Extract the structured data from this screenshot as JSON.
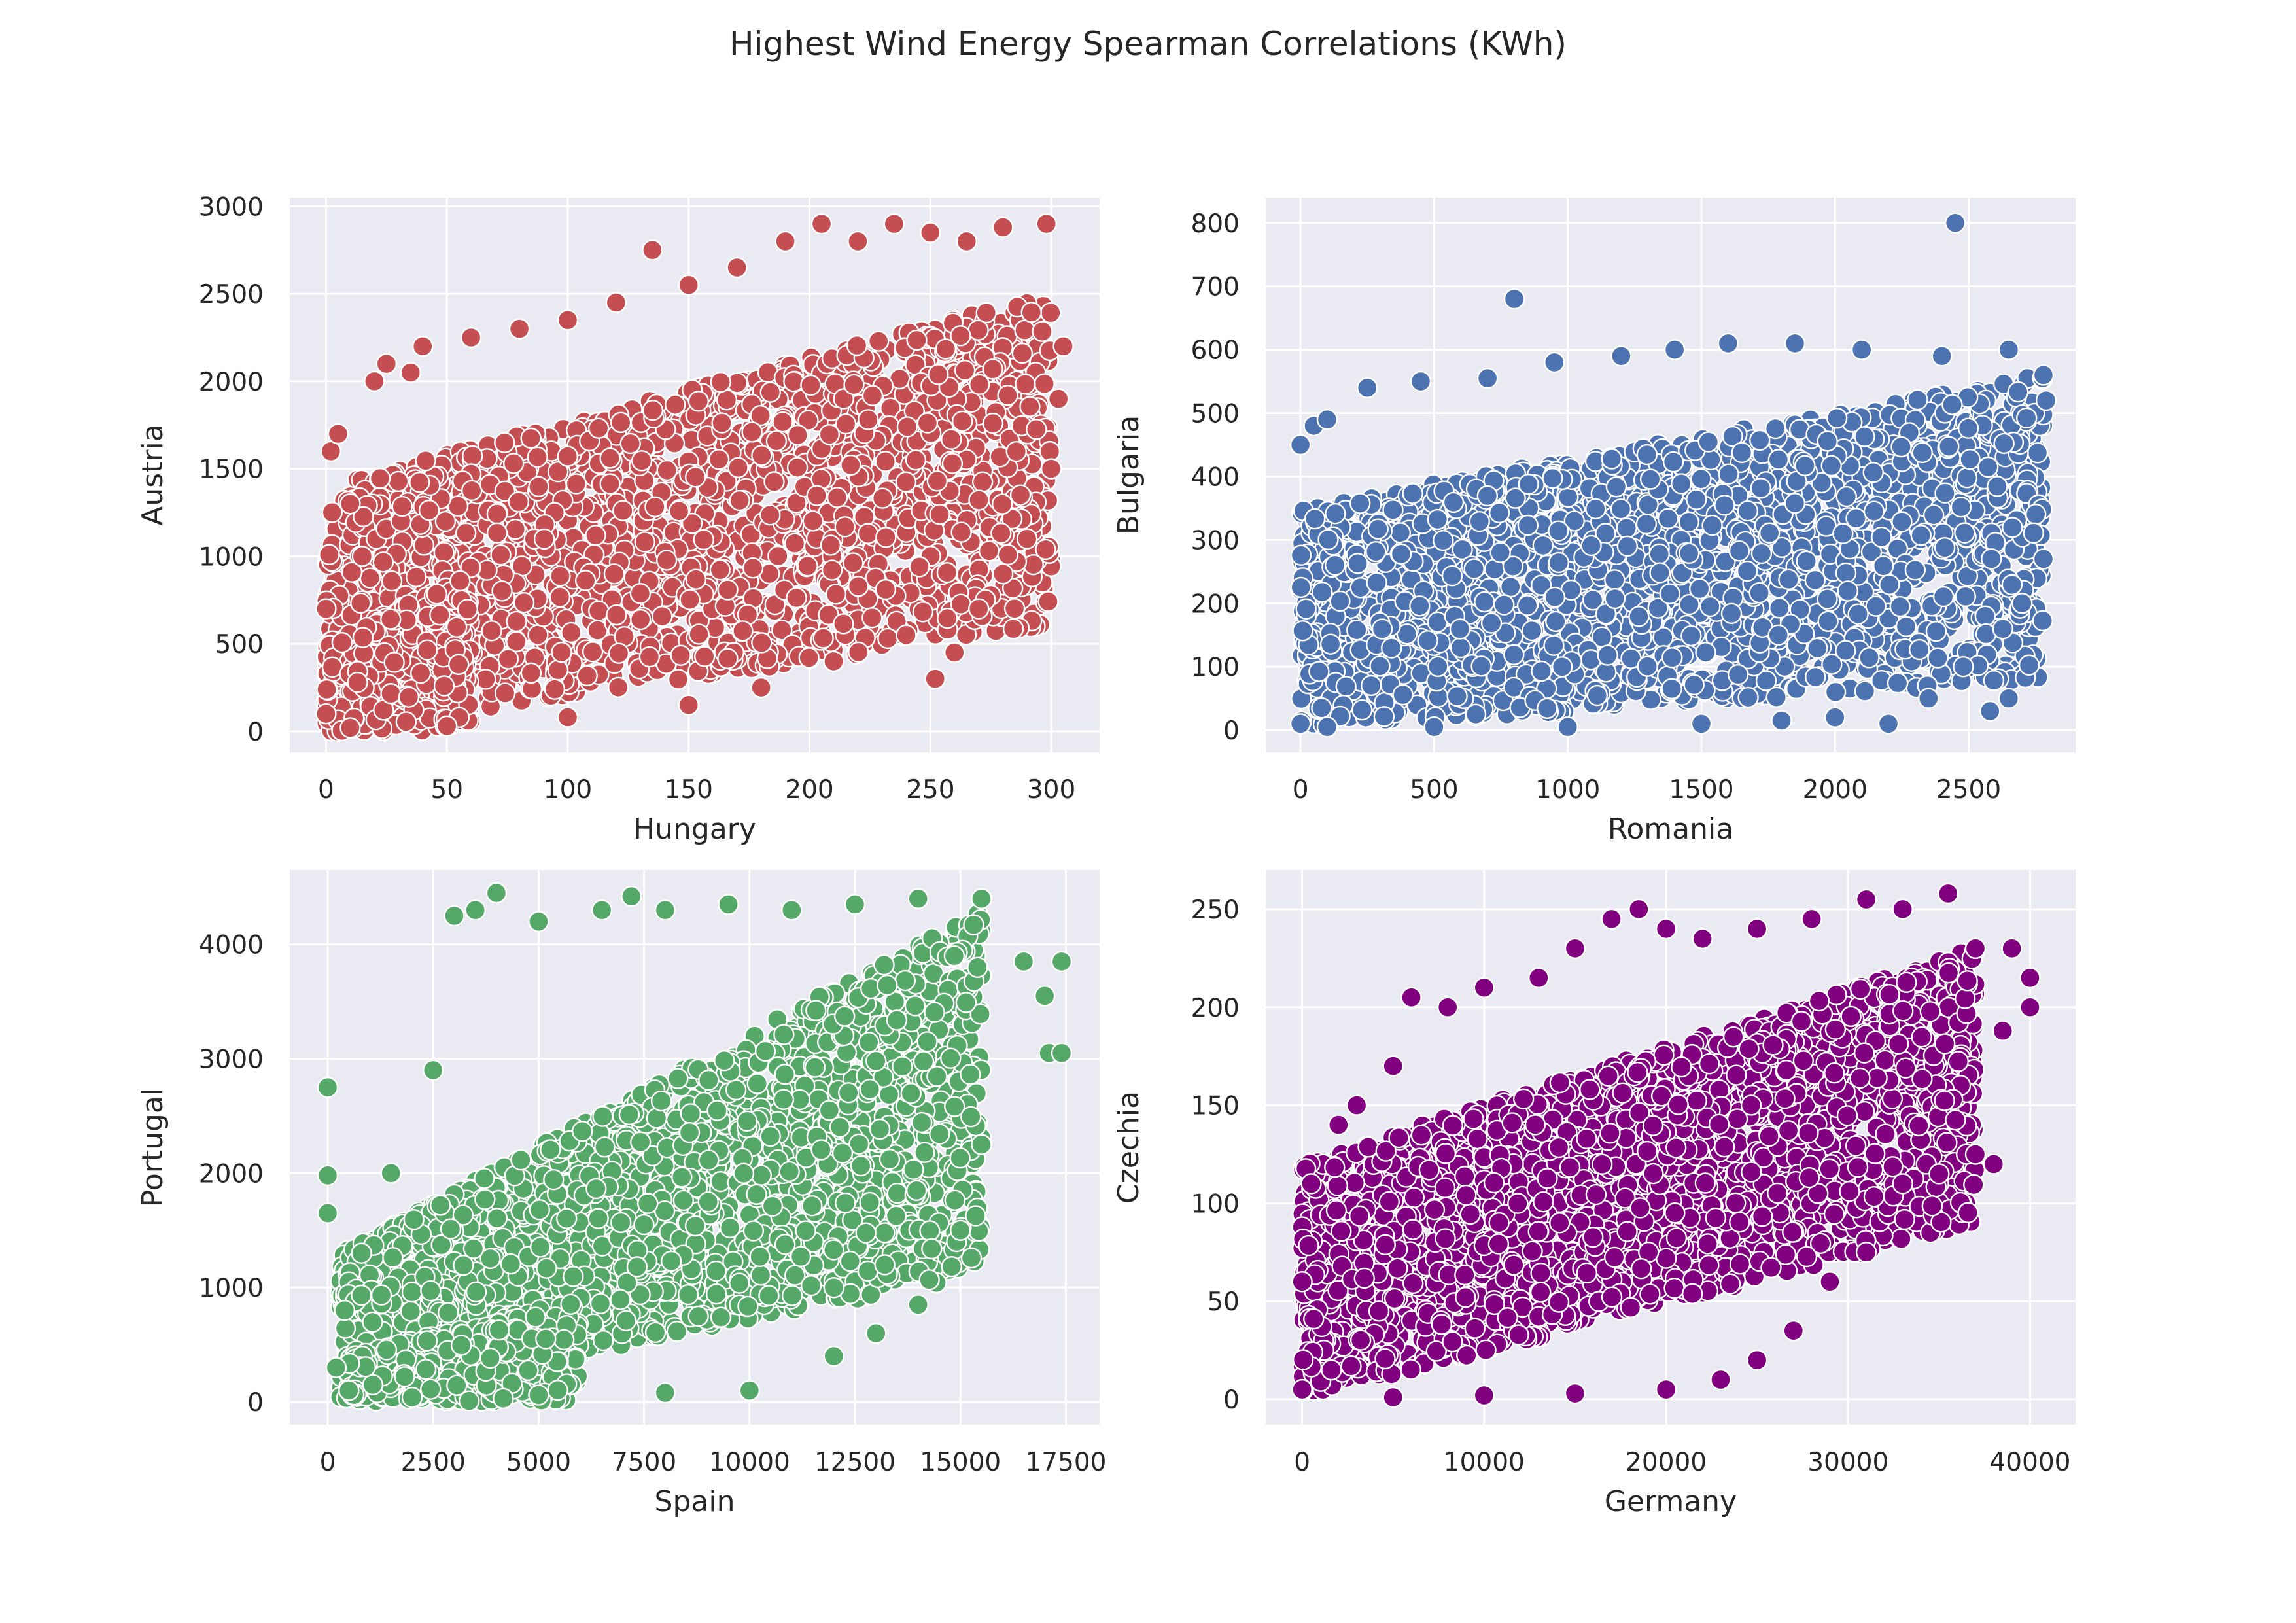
{
  "title": "Highest Wind Energy Spearman Correlations (KWh)",
  "colors": {
    "background": "#eaeaf2",
    "grid": "#ffffff",
    "marker_edge": "#ffffff"
  },
  "chart_data": [
    {
      "type": "scatter",
      "xlabel": "Hungary",
      "ylabel": "Austria",
      "color": "#c44e52",
      "xlim": [
        -15,
        320
      ],
      "ylim": [
        -120,
        3050
      ],
      "xticks": [
        0,
        50,
        100,
        150,
        200,
        250,
        300
      ],
      "xtick_labels": [
        "0",
        "50",
        "100",
        "150",
        "200",
        "250",
        "300"
      ],
      "yticks": [
        0,
        500,
        1000,
        1500,
        2000,
        2500,
        3000
      ],
      "ytick_labels": [
        "0",
        "500",
        "1000",
        "1500",
        "2000",
        "2500",
        "3000"
      ],
      "grid": true,
      "points": [
        [
          0,
          700
        ],
        [
          2,
          1600
        ],
        [
          5,
          1700
        ],
        [
          10,
          1300
        ],
        [
          15,
          1000
        ],
        [
          20,
          2000
        ],
        [
          25,
          2100
        ],
        [
          35,
          2050
        ],
        [
          40,
          2200
        ],
        [
          60,
          2250
        ],
        [
          80,
          2300
        ],
        [
          100,
          2350
        ],
        [
          120,
          2450
        ],
        [
          135,
          2750
        ],
        [
          150,
          2550
        ],
        [
          170,
          2650
        ],
        [
          190,
          2800
        ],
        [
          205,
          2900
        ],
        [
          220,
          2800
        ],
        [
          235,
          2900
        ],
        [
          250,
          2850
        ],
        [
          265,
          2800
        ],
        [
          280,
          2880
        ],
        [
          298,
          2900
        ],
        [
          305,
          2200
        ],
        [
          303,
          1900
        ],
        [
          300,
          1500
        ],
        [
          290,
          1100
        ],
        [
          280,
          900
        ],
        [
          270,
          700
        ],
        [
          260,
          450
        ],
        [
          252,
          300
        ],
        [
          240,
          550
        ],
        [
          210,
          400
        ],
        [
          180,
          250
        ],
        [
          150,
          150
        ],
        [
          100,
          80
        ],
        [
          50,
          30
        ],
        [
          10,
          20
        ],
        [
          0,
          100
        ]
      ],
      "density_bands": [
        {
          "x_range": [
            0,
            300
          ],
          "y_low_at_start": 0,
          "y_low_at_end": 600,
          "y_high_at_start": 1400,
          "y_high_at_end": 2500,
          "count": 2400
        },
        {
          "x_range": [
            0,
            60
          ],
          "y_low_at_start": 0,
          "y_low_at_end": 0,
          "y_high_at_start": 500,
          "y_high_at_end": 900,
          "count": 500
        }
      ]
    },
    {
      "type": "scatter",
      "xlabel": "Romania",
      "ylabel": "Bulgaria",
      "color": "#4c72b0",
      "xlim": [
        -130,
        2900
      ],
      "ylim": [
        -35,
        840
      ],
      "xticks": [
        0,
        500,
        1000,
        1500,
        2000,
        2500
      ],
      "xtick_labels": [
        "0",
        "500",
        "1000",
        "1500",
        "2000",
        "2500"
      ],
      "yticks": [
        0,
        100,
        200,
        300,
        400,
        500,
        600,
        700,
        800
      ],
      "ytick_labels": [
        "0",
        "100",
        "200",
        "300",
        "400",
        "500",
        "600",
        "700",
        "800"
      ],
      "grid": true,
      "points": [
        [
          2450,
          800
        ],
        [
          800,
          680
        ],
        [
          0,
          450
        ],
        [
          50,
          480
        ],
        [
          100,
          490
        ],
        [
          250,
          540
        ],
        [
          450,
          550
        ],
        [
          700,
          555
        ],
        [
          950,
          580
        ],
        [
          1200,
          590
        ],
        [
          1400,
          600
        ],
        [
          1600,
          610
        ],
        [
          1850,
          610
        ],
        [
          2100,
          600
        ],
        [
          2400,
          590
        ],
        [
          2650,
          600
        ],
        [
          2780,
          560
        ],
        [
          2790,
          520
        ],
        [
          2780,
          270
        ],
        [
          2700,
          200
        ],
        [
          2650,
          50
        ],
        [
          2580,
          30
        ],
        [
          2480,
          100
        ],
        [
          2350,
          50
        ],
        [
          2200,
          10
        ],
        [
          2000,
          20
        ],
        [
          1800,
          15
        ],
        [
          1500,
          10
        ],
        [
          1000,
          5
        ],
        [
          500,
          5
        ],
        [
          100,
          5
        ],
        [
          0,
          10
        ]
      ],
      "density_bands": [
        {
          "x_range": [
            0,
            2780
          ],
          "y_low_at_start": 0,
          "y_low_at_end": 80,
          "y_high_at_start": 350,
          "y_high_at_end": 560,
          "count": 2600
        }
      ]
    },
    {
      "type": "scatter",
      "xlabel": "Spain",
      "ylabel": "Portugal",
      "color": "#55a868",
      "xlim": [
        -900,
        18300
      ],
      "ylim": [
        -200,
        4650
      ],
      "xticks": [
        0,
        2500,
        5000,
        7500,
        10000,
        12500,
        15000,
        17500
      ],
      "xtick_labels": [
        "0",
        "2500",
        "5000",
        "7500",
        "10000",
        "12500",
        "15000",
        "17500"
      ],
      "yticks": [
        0,
        1000,
        2000,
        3000,
        4000
      ],
      "ytick_labels": [
        "0",
        "1000",
        "2000",
        "3000",
        "4000"
      ],
      "grid": true,
      "points": [
        [
          0,
          2750
        ],
        [
          0,
          1980
        ],
        [
          0,
          1650
        ],
        [
          3000,
          4250
        ],
        [
          3500,
          4300
        ],
        [
          4000,
          4450
        ],
        [
          5000,
          4200
        ],
        [
          6500,
          4300
        ],
        [
          7200,
          4420
        ],
        [
          8000,
          4300
        ],
        [
          9500,
          4350
        ],
        [
          11000,
          4300
        ],
        [
          12500,
          4350
        ],
        [
          14000,
          4400
        ],
        [
          15500,
          4400
        ],
        [
          16500,
          3850
        ],
        [
          17000,
          3550
        ],
        [
          17400,
          3850
        ],
        [
          17100,
          3050
        ],
        [
          17400,
          3050
        ],
        [
          15500,
          2250
        ],
        [
          15000,
          1500
        ],
        [
          14000,
          850
        ],
        [
          13000,
          600
        ],
        [
          12000,
          400
        ],
        [
          10000,
          100
        ],
        [
          8000,
          80
        ],
        [
          5000,
          60
        ],
        [
          2000,
          40
        ],
        [
          500,
          100
        ],
        [
          200,
          300
        ],
        [
          400,
          800
        ],
        [
          800,
          1300
        ],
        [
          1500,
          2000
        ],
        [
          2500,
          2900
        ]
      ],
      "density_bands": [
        {
          "x_range": [
            300,
            15500
          ],
          "y_low_at_start": 0,
          "y_low_at_end": 1100,
          "y_high_at_start": 1300,
          "y_high_at_end": 4300,
          "count": 2600
        },
        {
          "x_range": [
            500,
            6000
          ],
          "y_low_at_start": 0,
          "y_low_at_end": 0,
          "y_high_at_start": 400,
          "y_high_at_end": 900,
          "count": 500
        }
      ]
    },
    {
      "type": "scatter",
      "xlabel": "Germany",
      "ylabel": "Czechia",
      "color": "#800080",
      "xlim": [
        -2000,
        42500
      ],
      "ylim": [
        -13,
        270
      ],
      "xticks": [
        0,
        10000,
        20000,
        30000,
        40000
      ],
      "xtick_labels": [
        "0",
        "10000",
        "20000",
        "30000",
        "40000"
      ],
      "yticks": [
        0,
        50,
        100,
        150,
        200,
        250
      ],
      "ytick_labels": [
        "0",
        "50",
        "100",
        "150",
        "200",
        "250"
      ],
      "grid": true,
      "points": [
        [
          0,
          5
        ],
        [
          0,
          60
        ],
        [
          500,
          110
        ],
        [
          2000,
          140
        ],
        [
          3000,
          150
        ],
        [
          5000,
          170
        ],
        [
          6000,
          205
        ],
        [
          8000,
          200
        ],
        [
          10000,
          210
        ],
        [
          13000,
          215
        ],
        [
          15000,
          230
        ],
        [
          17000,
          245
        ],
        [
          18500,
          250
        ],
        [
          20000,
          240
        ],
        [
          22000,
          235
        ],
        [
          25000,
          240
        ],
        [
          28000,
          245
        ],
        [
          31000,
          255
        ],
        [
          33000,
          250
        ],
        [
          35500,
          258
        ],
        [
          37000,
          230
        ],
        [
          39000,
          230
        ],
        [
          40000,
          215
        ],
        [
          40000,
          200
        ],
        [
          38500,
          188
        ],
        [
          38000,
          120
        ],
        [
          37000,
          125
        ],
        [
          35000,
          115
        ],
        [
          33000,
          110
        ],
        [
          31000,
          75
        ],
        [
          29000,
          60
        ],
        [
          27000,
          35
        ],
        [
          25000,
          20
        ],
        [
          23000,
          10
        ],
        [
          20000,
          5
        ],
        [
          15000,
          3
        ],
        [
          10000,
          2
        ],
        [
          5000,
          1
        ]
      ],
      "density_bands": [
        {
          "x_range": [
            0,
            37000
          ],
          "y_low_at_start": 0,
          "y_low_at_end": 90,
          "y_high_at_start": 120,
          "y_high_at_end": 230,
          "count": 2800
        }
      ]
    }
  ]
}
